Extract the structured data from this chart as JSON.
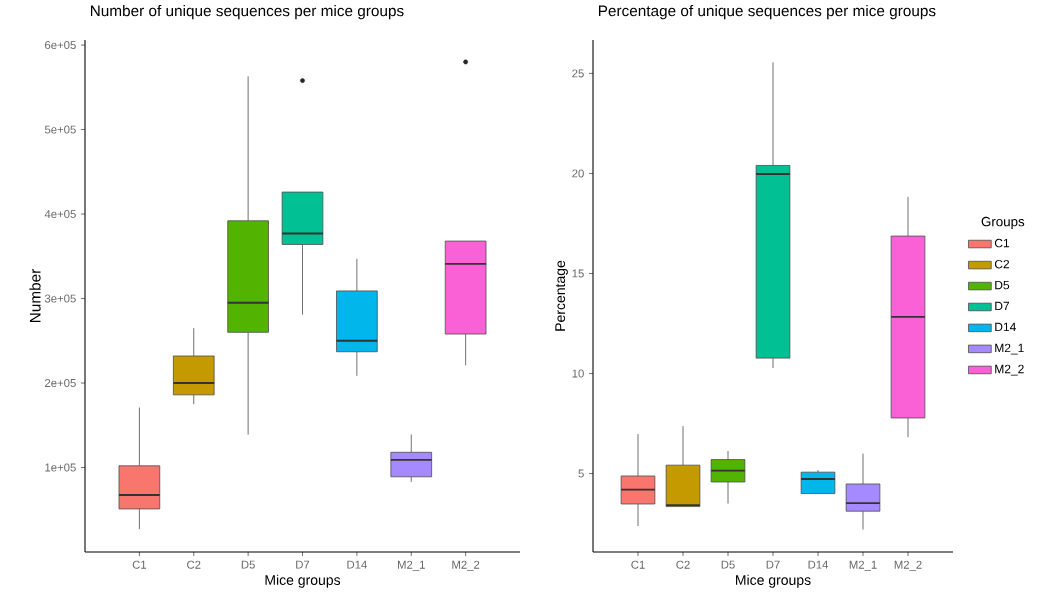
{
  "chart_data": [
    {
      "type": "box",
      "title": "Number of unique sequences per mice groups",
      "xlabel": "Mice groups",
      "ylabel": "Number",
      "categories": [
        "C1",
        "C2",
        "D5",
        "D7",
        "D14",
        "M2_1",
        "M2_2"
      ],
      "colors": [
        "#f8766d",
        "#c49a00",
        "#53b400",
        "#00c094",
        "#00b6eb",
        "#a58aff",
        "#fb61d7"
      ],
      "boxes": [
        {
          "low": 27000,
          "q1": 51000,
          "median": 67500,
          "q3": 102000,
          "high": 171000
        },
        {
          "low": 175000,
          "q1": 186000,
          "median": 200000,
          "q3": 232000,
          "high": 265000
        },
        {
          "low": 139000,
          "q1": 260000,
          "median": 295000,
          "q3": 392000,
          "high": 563000
        },
        {
          "low": 281000,
          "q1": 364000,
          "median": 377000,
          "q3": 426000,
          "high": 426000,
          "outliers": [
            558000
          ]
        },
        {
          "low": 208500,
          "q1": 237000,
          "median": 250000,
          "q3": 309000,
          "high": 347000
        },
        {
          "low": 83000,
          "q1": 89000,
          "median": 109000,
          "q3": 118000,
          "high": 139000
        },
        {
          "low": 221000,
          "q1": 258000,
          "median": 341000,
          "q3": 368000,
          "high": 368000,
          "outliers": [
            580000
          ]
        }
      ],
      "ylim": [
        0,
        606000
      ],
      "yticks": [
        {
          "value": 100000,
          "label": "1e+05"
        },
        {
          "value": 200000,
          "label": "2e+05"
        },
        {
          "value": 300000,
          "label": "3e+05"
        },
        {
          "value": 400000,
          "label": "4e+05"
        },
        {
          "value": 500000,
          "label": "5e+05"
        },
        {
          "value": 600000,
          "label": "6e+05"
        }
      ]
    },
    {
      "type": "box",
      "title": "Percentage of unique sequences per mice groups",
      "xlabel": "Mice groups",
      "ylabel": "Percentage",
      "legend_title": "Groups",
      "categories": [
        "C1",
        "C2",
        "D5",
        "D7",
        "D14",
        "M2_1",
        "M2_2"
      ],
      "series": [
        {
          "name": "C1",
          "color": "#f8766d",
          "boxes": [
            {
              "low": 2.38,
              "q1": 3.48,
              "median": 4.2,
              "q3": 4.88,
              "high": 6.97
            },
            null,
            null,
            null,
            null,
            null,
            null
          ]
        },
        {
          "name": "C2",
          "color": "#c49a00",
          "boxes": [
            null,
            {
              "low": 3.35,
              "q1": 3.35,
              "median": 3.42,
              "q3": 5.42,
              "high": 7.37
            },
            null,
            null,
            null,
            null,
            null
          ]
        },
        {
          "name": "D5",
          "color": "#53b400",
          "boxes": [
            null,
            null,
            {
              "low": 3.5,
              "q1": 4.58,
              "median": 5.15,
              "q3": 5.7,
              "high": 6.13
            },
            null,
            null,
            null,
            null
          ]
        },
        {
          "name": "D7",
          "color": "#00c094",
          "boxes": [
            null,
            null,
            null,
            {
              "low": 10.28,
              "q1": 10.77,
              "median": 19.97,
              "q3": 20.4,
              "high": 25.55
            },
            null,
            null,
            null
          ]
        },
        {
          "name": "D14",
          "color": "#00b6eb",
          "boxes": [
            null,
            null,
            null,
            null,
            {
              "low": 4.0,
              "q1": 4.0,
              "median": 4.73,
              "q3": 5.07,
              "high": 5.17
            },
            null,
            null
          ]
        },
        {
          "name": "M2_1",
          "color": "#a58aff",
          "boxes": [
            null,
            null,
            null,
            null,
            null,
            {
              "low": 2.2,
              "q1": 3.12,
              "median": 3.52,
              "q3": 4.48,
              "high": 6.0
            },
            null
          ]
        },
        {
          "name": "M2_2",
          "color": "#fb61d7",
          "boxes": [
            null,
            null,
            null,
            null,
            null,
            null,
            {
              "low": 6.82,
              "q1": 7.78,
              "median": 12.83,
              "q3": 16.87,
              "high": 18.83
            }
          ]
        }
      ],
      "ylim": [
        1.08,
        26.67
      ],
      "yticks": [
        5,
        10,
        15,
        20,
        25
      ],
      "legend": "right"
    }
  ]
}
